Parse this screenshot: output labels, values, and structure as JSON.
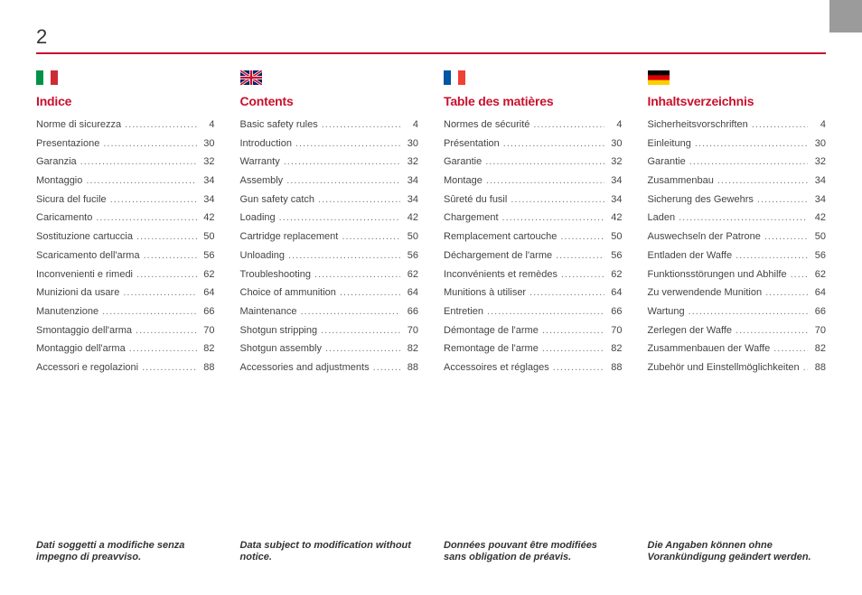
{
  "page_number": "2",
  "colors": {
    "accent": "#c8102e",
    "corner": "#9b9b9b",
    "text": "#333333"
  },
  "columns": [
    {
      "flag_id": "flag-it",
      "title": "Indice",
      "entries": [
        {
          "label": "Norme di sicurezza",
          "page": "4"
        },
        {
          "label": "Presentazione",
          "page": "30"
        },
        {
          "label": "Garanzia",
          "page": "32"
        },
        {
          "label": "Montaggio",
          "page": "34"
        },
        {
          "label": "Sicura del fucile",
          "page": "34"
        },
        {
          "label": "Caricamento",
          "page": "42"
        },
        {
          "label": "Sostituzione cartuccia",
          "page": "50"
        },
        {
          "label": "Scaricamento dell'arma",
          "page": "56"
        },
        {
          "label": "Inconvenienti e rimedi",
          "page": "62"
        },
        {
          "label": "Munizioni da usare",
          "page": "64"
        },
        {
          "label": "Manutenzione",
          "page": "66"
        },
        {
          "label": "Smontaggio dell'arma",
          "page": "70"
        },
        {
          "label": "Montaggio dell'arma",
          "page": "82"
        },
        {
          "label": "Accessori e regolazioni",
          "page": "88"
        }
      ],
      "footnote": "Dati soggetti a modifiche senza impegno di preavviso."
    },
    {
      "flag_id": "flag-uk",
      "title": "Contents",
      "entries": [
        {
          "label": "Basic safety rules",
          "page": "4"
        },
        {
          "label": "Introduction",
          "page": "30"
        },
        {
          "label": "Warranty",
          "page": "32"
        },
        {
          "label": "Assembly",
          "page": "34"
        },
        {
          "label": "Gun safety catch",
          "page": "34"
        },
        {
          "label": "Loading",
          "page": "42"
        },
        {
          "label": "Cartridge replacement",
          "page": "50"
        },
        {
          "label": "Unloading",
          "page": "56"
        },
        {
          "label": "Troubleshooting",
          "page": "62"
        },
        {
          "label": "Choice of ammunition",
          "page": "64"
        },
        {
          "label": "Maintenance",
          "page": "66"
        },
        {
          "label": "Shotgun stripping",
          "page": "70"
        },
        {
          "label": "Shotgun assembly",
          "page": "82"
        },
        {
          "label": "Accessories and adjustments",
          "page": "88"
        }
      ],
      "footnote": "Data subject to modification without notice."
    },
    {
      "flag_id": "flag-fr",
      "title": "Table des matières",
      "entries": [
        {
          "label": "Normes de sécurité",
          "page": "4"
        },
        {
          "label": "Présentation",
          "page": "30"
        },
        {
          "label": "Garantie",
          "page": "32"
        },
        {
          "label": "Montage",
          "page": "34"
        },
        {
          "label": "Sûreté du fusil",
          "page": "34"
        },
        {
          "label": "Chargement",
          "page": "42"
        },
        {
          "label": "Remplacement cartouche",
          "page": "50"
        },
        {
          "label": "Déchargement de l'arme",
          "page": "56"
        },
        {
          "label": "Inconvénients et remèdes",
          "page": "62"
        },
        {
          "label": "Munitions à utiliser",
          "page": "64"
        },
        {
          "label": "Entretien",
          "page": "66"
        },
        {
          "label": "Démontage de l'arme",
          "page": "70"
        },
        {
          "label": "Remontage de l'arme",
          "page": "82"
        },
        {
          "label": "Accessoires et réglages",
          "page": "88"
        }
      ],
      "footnote": "Données pouvant être modifiées sans obligation de préavis."
    },
    {
      "flag_id": "flag-de",
      "title": "Inhaltsverzeichnis",
      "entries": [
        {
          "label": "Sicherheitsvorschriften",
          "page": "4"
        },
        {
          "label": "Einleitung",
          "page": "30"
        },
        {
          "label": "Garantie",
          "page": "32"
        },
        {
          "label": "Zusammenbau",
          "page": "34"
        },
        {
          "label": "Sicherung des Gewehrs",
          "page": "34"
        },
        {
          "label": "Laden",
          "page": "42"
        },
        {
          "label": "Auswechseln der Patrone",
          "page": "50"
        },
        {
          "label": "Entladen der Waffe",
          "page": "56"
        },
        {
          "label": "Funktionsstörungen und Abhilfe",
          "page": "62"
        },
        {
          "label": "Zu verwendende Munition",
          "page": "64"
        },
        {
          "label": "Wartung",
          "page": "66"
        },
        {
          "label": "Zerlegen der Waffe",
          "page": "70"
        },
        {
          "label": "Zusammenbauen der Waffe",
          "page": "82"
        },
        {
          "label": "Zubehör und Einstellmöglichkeiten",
          "page": "88"
        }
      ],
      "footnote": "Die Angaben können ohne Vorankündigung geändert werden."
    }
  ]
}
